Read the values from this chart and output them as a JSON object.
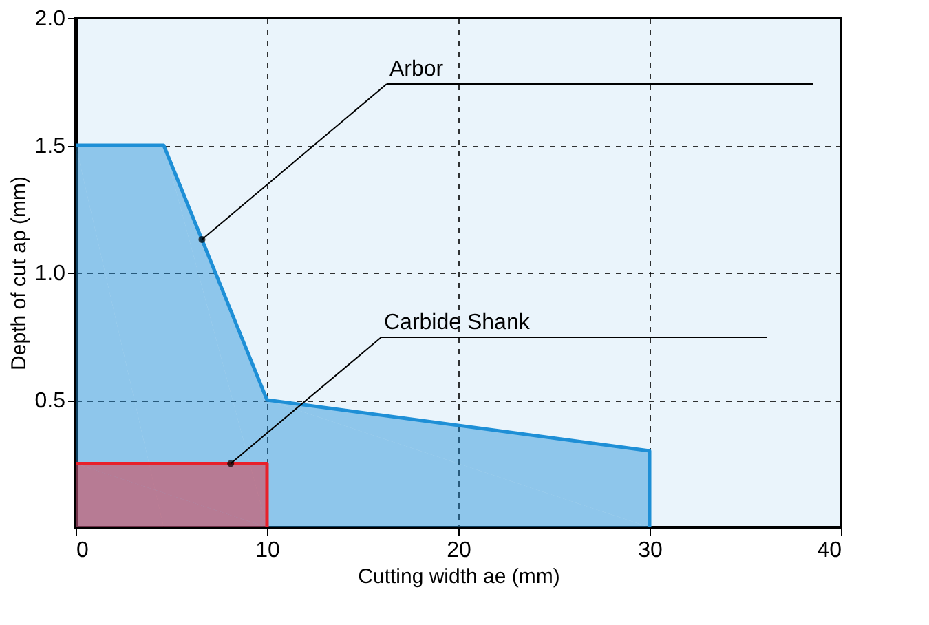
{
  "chart_data": {
    "type": "area",
    "xlabel": "Cutting width ae (mm)",
    "ylabel": "Depth of cut ap (mm)",
    "xlim": [
      0,
      40
    ],
    "xticks": [
      0,
      10,
      20,
      30,
      40
    ],
    "ylim": [
      0,
      2
    ],
    "yticks": [
      {
        "value": 0.5,
        "label": "0.5"
      },
      {
        "value": 1,
        "label": "1.0"
      },
      {
        "value": 1.5,
        "label": "1.5"
      },
      {
        "value": 2,
        "label": "2.0"
      }
    ],
    "grid": true,
    "line_style": "solid",
    "series": [
      {
        "color": "#1e8fd6",
        "x": [
          0,
          4.6,
          10,
          30,
          30
        ],
        "values": [
          1.5,
          1.5,
          0.5,
          0.3,
          0
        ]
      },
      {
        "color": "#e8202a",
        "x": [
          0,
          10,
          10
        ],
        "values": [
          0.25,
          0.25,
          0
        ]
      }
    ],
    "annotations": [
      {
        "text": "Arbor",
        "x": 6.6,
        "y": 1.13
      },
      {
        "text": "Carbide Shank",
        "x": 8.1,
        "y": 0.25
      }
    ]
  }
}
